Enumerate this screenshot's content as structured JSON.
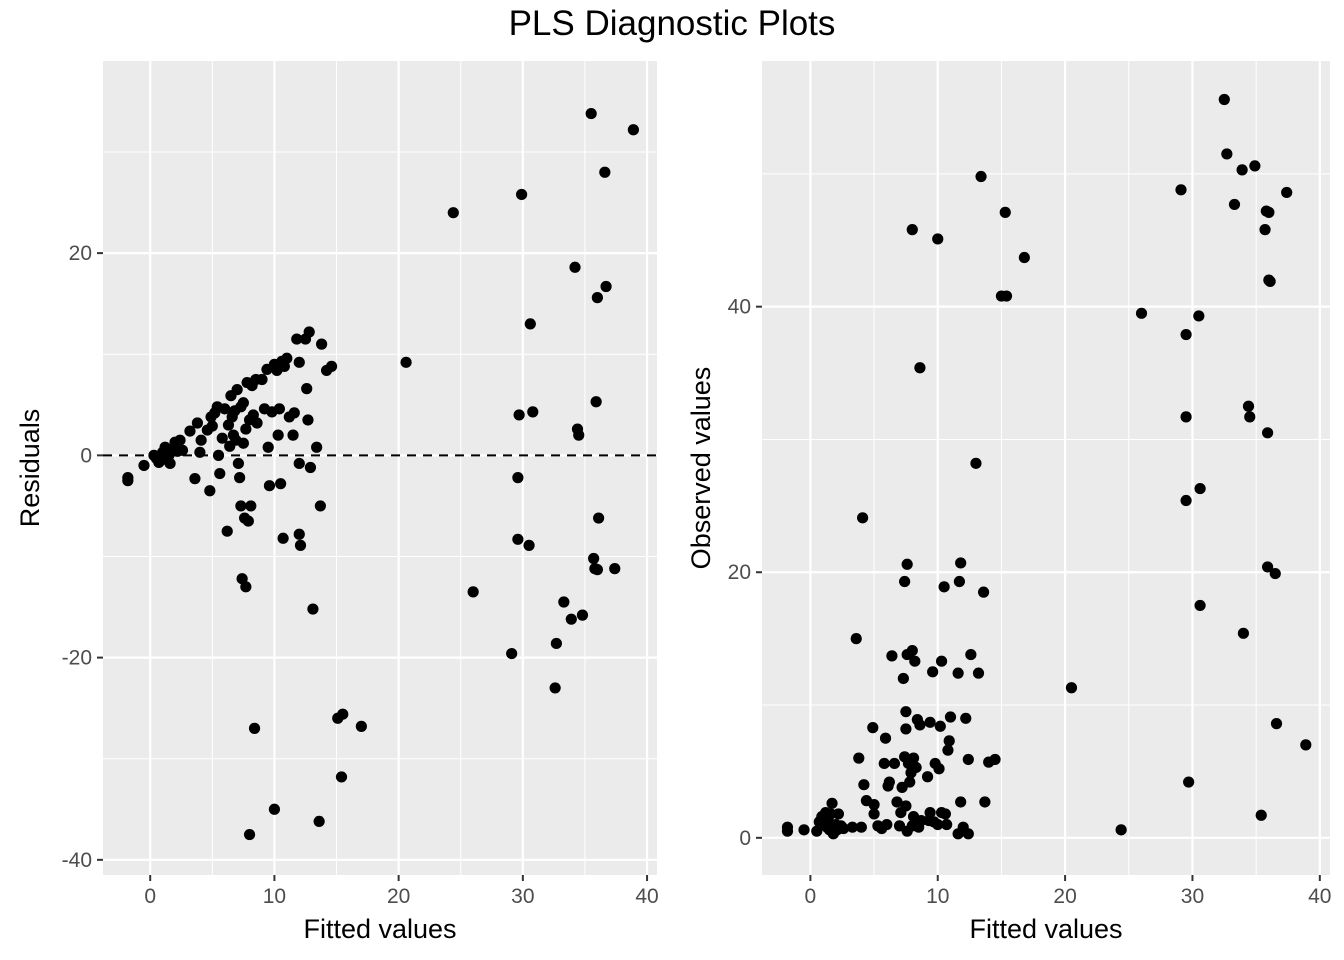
{
  "title": "PLS Diagnostic Plots",
  "chart_data": [
    {
      "type": "scatter",
      "title": "",
      "xlabel": "Fitted values",
      "ylabel": "Residuals",
      "xlim": [
        -3.8,
        40.8
      ],
      "ylim": [
        -41.5,
        39
      ],
      "xticks": [
        0,
        10,
        20,
        30,
        40
      ],
      "yticks": [
        -40,
        -20,
        0,
        20
      ],
      "xtick_labels": [
        "0",
        "10",
        "20",
        "30",
        "40"
      ],
      "ytick_labels": [
        "-40",
        "-20",
        "0",
        "20"
      ],
      "grid": true,
      "reference_line": {
        "y": 0,
        "style": "dashed"
      },
      "points": [
        [
          -1.8,
          -2.2
        ],
        [
          -1.8,
          -2.5
        ],
        [
          -0.5,
          -1
        ],
        [
          0.3,
          0
        ],
        [
          0.5,
          -0.3
        ],
        [
          0.7,
          -0.7
        ],
        [
          1,
          0.3
        ],
        [
          1.2,
          0.8
        ],
        [
          1.3,
          -0.4
        ],
        [
          1.5,
          0
        ],
        [
          1.6,
          -0.8
        ],
        [
          1.8,
          0.5
        ],
        [
          2,
          1.3
        ],
        [
          2.2,
          0.4
        ],
        [
          2.4,
          1.5
        ],
        [
          2.6,
          0.5
        ],
        [
          3.2,
          2.4
        ],
        [
          3.6,
          -2.3
        ],
        [
          3.8,
          3.2
        ],
        [
          4,
          0.3
        ],
        [
          4.1,
          1.5
        ],
        [
          4.6,
          2.5
        ],
        [
          4.8,
          -3.5
        ],
        [
          4.9,
          3.8
        ],
        [
          5,
          2.9
        ],
        [
          5.2,
          4.2
        ],
        [
          5.4,
          4.8
        ],
        [
          5.5,
          0
        ],
        [
          5.6,
          -1.8
        ],
        [
          5.8,
          1.7
        ],
        [
          6,
          4.6
        ],
        [
          6.2,
          -7.5
        ],
        [
          6.3,
          3
        ],
        [
          6.4,
          0.9
        ],
        [
          6.5,
          5.9
        ],
        [
          6.6,
          3.8
        ],
        [
          6.7,
          2
        ],
        [
          6.8,
          4.4
        ],
        [
          6.9,
          1.5
        ],
        [
          7,
          6.5
        ],
        [
          7.1,
          -0.8
        ],
        [
          7.2,
          -2.2
        ],
        [
          7.3,
          -5
        ],
        [
          7.3,
          4.8
        ],
        [
          7.4,
          -12.2
        ],
        [
          7.5,
          1.2
        ],
        [
          7.5,
          5.2
        ],
        [
          7.6,
          -6.2
        ],
        [
          7.7,
          -13
        ],
        [
          7.7,
          2.6
        ],
        [
          7.8,
          7.2
        ],
        [
          7.9,
          -6.5
        ],
        [
          8,
          3.5
        ],
        [
          8,
          -37.5
        ],
        [
          8.1,
          -5
        ],
        [
          8.2,
          6.9
        ],
        [
          8.3,
          4
        ],
        [
          8.4,
          -27
        ],
        [
          8.5,
          7.5
        ],
        [
          8.6,
          3.2
        ],
        [
          9,
          7.5
        ],
        [
          9.2,
          4.6
        ],
        [
          9.4,
          8.5
        ],
        [
          9.5,
          0.8
        ],
        [
          9.6,
          -3
        ],
        [
          9.8,
          4.3
        ],
        [
          10,
          9
        ],
        [
          10,
          -35
        ],
        [
          10.2,
          8.4
        ],
        [
          10.3,
          2
        ],
        [
          10.4,
          4.6
        ],
        [
          10.5,
          -2.8
        ],
        [
          10.6,
          9.3
        ],
        [
          10.7,
          -8.2
        ],
        [
          10.8,
          8.8
        ],
        [
          11,
          9.6
        ],
        [
          11.2,
          3.8
        ],
        [
          11.5,
          2
        ],
        [
          11.6,
          4.2
        ],
        [
          11.8,
          11.5
        ],
        [
          12,
          -0.8
        ],
        [
          12,
          9.2
        ],
        [
          12,
          -7.8
        ],
        [
          12.1,
          -8.9
        ],
        [
          12.5,
          11.5
        ],
        [
          12.6,
          6.6
        ],
        [
          12.7,
          3.5
        ],
        [
          12.8,
          12.2
        ],
        [
          12.9,
          -1.2
        ],
        [
          13.1,
          -15.2
        ],
        [
          13.4,
          0.8
        ],
        [
          13.6,
          -36.2
        ],
        [
          13.7,
          -5
        ],
        [
          13.8,
          11
        ],
        [
          14.2,
          8.4
        ],
        [
          14.6,
          8.8
        ],
        [
          15.1,
          -26
        ],
        [
          15.4,
          -31.8
        ],
        [
          15.5,
          -25.6
        ],
        [
          17,
          -26.8
        ],
        [
          20.6,
          9.2
        ],
        [
          24.4,
          24
        ],
        [
          26,
          -13.5
        ],
        [
          29.1,
          -19.6
        ],
        [
          29.6,
          -8.3
        ],
        [
          29.6,
          -2.2
        ],
        [
          29.7,
          4
        ],
        [
          29.9,
          25.8
        ],
        [
          30.5,
          -8.9
        ],
        [
          30.6,
          13
        ],
        [
          30.8,
          4.3
        ],
        [
          32.6,
          -23
        ],
        [
          32.7,
          -18.6
        ],
        [
          33.3,
          -14.5
        ],
        [
          33.9,
          -16.2
        ],
        [
          34.2,
          18.6
        ],
        [
          34.4,
          2.6
        ],
        [
          34.5,
          2
        ],
        [
          34.8,
          -15.8
        ],
        [
          35.5,
          33.8
        ],
        [
          35.7,
          -10.2
        ],
        [
          35.8,
          -11.2
        ],
        [
          35.9,
          5.3
        ],
        [
          36,
          -11.3
        ],
        [
          36,
          15.6
        ],
        [
          36.1,
          -6.2
        ],
        [
          36.6,
          28
        ],
        [
          36.7,
          16.7
        ],
        [
          37.4,
          -11.2
        ],
        [
          38.9,
          32.2
        ]
      ]
    },
    {
      "type": "scatter",
      "title": "",
      "xlabel": "Fitted values",
      "ylabel": "Observed values",
      "xlim": [
        -3.8,
        40.8
      ],
      "ylim": [
        -2.8,
        58.5
      ],
      "xticks": [
        0,
        10,
        20,
        30,
        40
      ],
      "yticks": [
        0,
        20,
        40
      ],
      "xtick_labels": [
        "0",
        "10",
        "20",
        "30",
        "40"
      ],
      "ytick_labels": [
        "0",
        "20",
        "40"
      ],
      "grid": true,
      "points": [
        [
          -1.8,
          0.5
        ],
        [
          -1.8,
          0.8
        ],
        [
          -0.5,
          0.6
        ],
        [
          0.5,
          0.5
        ],
        [
          0.7,
          1.2
        ],
        [
          0.9,
          1.6
        ],
        [
          1.1,
          1
        ],
        [
          1.2,
          1.9
        ],
        [
          1.3,
          0.8
        ],
        [
          1.4,
          1.3
        ],
        [
          1.5,
          0.6
        ],
        [
          1.6,
          1.8
        ],
        [
          1.7,
          2.6
        ],
        [
          1.8,
          0.3
        ],
        [
          2,
          1
        ],
        [
          2.1,
          0.6
        ],
        [
          2.2,
          1.8
        ],
        [
          2.4,
          0.9
        ],
        [
          2.6,
          0.7
        ],
        [
          3.3,
          0.8
        ],
        [
          3.6,
          15
        ],
        [
          3.8,
          6
        ],
        [
          4,
          0.8
        ],
        [
          4.1,
          24.1
        ],
        [
          4.2,
          4
        ],
        [
          4.4,
          2.8
        ],
        [
          4.9,
          8.3
        ],
        [
          5,
          2.5
        ],
        [
          5,
          1.8
        ],
        [
          5.3,
          0.9
        ],
        [
          5.6,
          0.7
        ],
        [
          5.8,
          5.6
        ],
        [
          5.9,
          7.5
        ],
        [
          6,
          1
        ],
        [
          6.1,
          3.9
        ],
        [
          6.2,
          4.2
        ],
        [
          6.4,
          13.7
        ],
        [
          6.6,
          5.6
        ],
        [
          6.8,
          2.7
        ],
        [
          7,
          0.9
        ],
        [
          7.1,
          1.9
        ],
        [
          7.2,
          3.8
        ],
        [
          7.3,
          12
        ],
        [
          7.4,
          6.1
        ],
        [
          7.4,
          19.3
        ],
        [
          7.5,
          2.4
        ],
        [
          7.5,
          8.2
        ],
        [
          7.5,
          9.5
        ],
        [
          7.6,
          20.6
        ],
        [
          7.6,
          13.8
        ],
        [
          7.6,
          0.5
        ],
        [
          7.7,
          5.6
        ],
        [
          7.8,
          4.2
        ],
        [
          7.9,
          4.9
        ],
        [
          8,
          14.1
        ],
        [
          8,
          0.9
        ],
        [
          8,
          45.8
        ],
        [
          8.1,
          1.6
        ],
        [
          8.1,
          6
        ],
        [
          8.2,
          13.3
        ],
        [
          8.3,
          5.3
        ],
        [
          8.4,
          8.9
        ],
        [
          8.5,
          0.8
        ],
        [
          8.6,
          8.5
        ],
        [
          8.6,
          35.4
        ],
        [
          8.7,
          1.3
        ],
        [
          9.2,
          4.6
        ],
        [
          9.3,
          1.3
        ],
        [
          9.4,
          8.7
        ],
        [
          9.4,
          1.9
        ],
        [
          9.6,
          12.5
        ],
        [
          9.7,
          1.2
        ],
        [
          9.8,
          5.6
        ],
        [
          10,
          45.1
        ],
        [
          10,
          1
        ],
        [
          10.1,
          5.2
        ],
        [
          10.2,
          8.4
        ],
        [
          10.3,
          13.3
        ],
        [
          10.3,
          1.9
        ],
        [
          10.5,
          18.9
        ],
        [
          10.6,
          1.8
        ],
        [
          10.7,
          1
        ],
        [
          10.8,
          6.6
        ],
        [
          10.9,
          7.3
        ],
        [
          11,
          9.1
        ],
        [
          11.6,
          12.4
        ],
        [
          11.6,
          0.3
        ],
        [
          11.7,
          19.3
        ],
        [
          11.8,
          20.7
        ],
        [
          11.8,
          2.7
        ],
        [
          12,
          0.8
        ],
        [
          12.2,
          9
        ],
        [
          12.4,
          5.9
        ],
        [
          12.4,
          0.3
        ],
        [
          12.6,
          13.8
        ],
        [
          13,
          28.2
        ],
        [
          13.2,
          12.4
        ],
        [
          13.4,
          49.8
        ],
        [
          13.6,
          18.5
        ],
        [
          13.7,
          2.7
        ],
        [
          14,
          5.7
        ],
        [
          14.5,
          5.9
        ],
        [
          15,
          40.8
        ],
        [
          15.3,
          47.1
        ],
        [
          15.4,
          40.8
        ],
        [
          16.8,
          43.7
        ],
        [
          20.5,
          11.3
        ],
        [
          24.4,
          0.6
        ],
        [
          26,
          39.5
        ],
        [
          29.1,
          48.8
        ],
        [
          29.5,
          31.7
        ],
        [
          29.5,
          25.4
        ],
        [
          29.5,
          37.9
        ],
        [
          29.7,
          4.2
        ],
        [
          30.5,
          39.3
        ],
        [
          30.6,
          26.3
        ],
        [
          30.6,
          17.5
        ],
        [
          32.5,
          55.6
        ],
        [
          32.7,
          51.5
        ],
        [
          33.3,
          47.7
        ],
        [
          33.9,
          50.3
        ],
        [
          34,
          15.4
        ],
        [
          34.4,
          32.5
        ],
        [
          34.5,
          31.7
        ],
        [
          34.9,
          50.6
        ],
        [
          35.4,
          1.7
        ],
        [
          35.7,
          45.8
        ],
        [
          35.8,
          47.2
        ],
        [
          35.9,
          30.5
        ],
        [
          35.9,
          20.4
        ],
        [
          36,
          42
        ],
        [
          36,
          47.1
        ],
        [
          36.1,
          41.9
        ],
        [
          36.5,
          19.9
        ],
        [
          36.6,
          8.6
        ],
        [
          37.4,
          48.6
        ],
        [
          38.9,
          7
        ]
      ]
    }
  ]
}
